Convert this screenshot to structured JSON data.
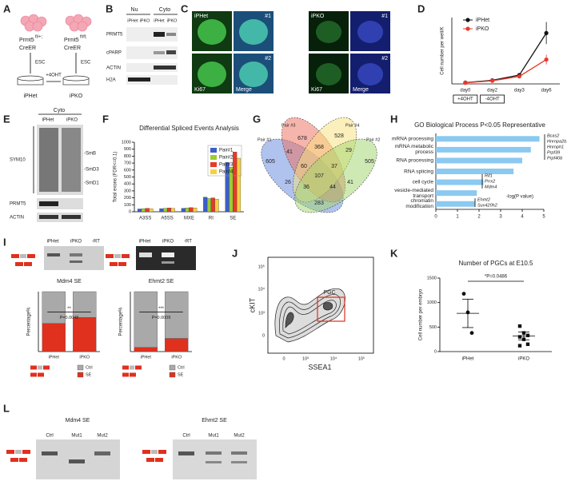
{
  "figure": {
    "panel_letters": [
      "A",
      "B",
      "C",
      "D",
      "E",
      "F",
      "G",
      "H",
      "I",
      "J",
      "K",
      "L"
    ],
    "a": {
      "gene": "Prmt5",
      "alleles": [
        "fl/+;",
        "fl/fl;"
      ],
      "creer": "CreER",
      "esc": "ESC",
      "treatment": "+4OHT",
      "lines": [
        "iPHet",
        "iPKO"
      ]
    },
    "b": {
      "groups": [
        "Nu",
        "Cyto"
      ],
      "lanes": [
        "iPHet",
        "iPKO",
        "iPHet",
        "iPKO"
      ],
      "rows": [
        "PRMT5",
        "cPARP",
        "ACTIN",
        "H2A"
      ]
    },
    "c": {
      "lines": [
        "iPHet",
        "iPKO"
      ],
      "fields": [
        "#1",
        "#2"
      ],
      "channels": [
        "Ki67",
        "Merge"
      ]
    },
    "e": {
      "header": "Cyto",
      "lanes": [
        "iPHet",
        "iPKO"
      ],
      "labels": [
        "SYM10",
        "-SmB",
        "-SmD3",
        "-SmD1",
        "PRMT5",
        "ACTIN"
      ]
    },
    "g": {
      "sets": [
        "Pair #1",
        "Pair #3",
        "Pair #4",
        "Pair #2"
      ],
      "counts": [
        "605",
        "678",
        "528",
        "505",
        "41",
        "368",
        "29",
        "60",
        "37",
        "107",
        "26",
        "41",
        "36",
        "44",
        "283"
      ]
    },
    "i": {
      "lanes": [
        "iPHet",
        "iPKO",
        "-RT"
      ]
    },
    "j": {
      "xlabel": "SSEA1",
      "ylabel": "cKIT",
      "gate": "PGC",
      "yticks": [
        "10⁵",
        "10⁴",
        "10³",
        "0"
      ],
      "xticks": [
        "0",
        "10³",
        "10⁴",
        "10⁵"
      ]
    },
    "l": {
      "titles": [
        "Mdm4 SE",
        "Ehmt2 SE"
      ],
      "lanes": [
        "Ctrl",
        "Mut1",
        "Mut2"
      ]
    }
  },
  "chart_data": [
    {
      "type": "line",
      "ylabel": "Cell number per well/K",
      "categories": [
        "day0",
        "day2",
        "day3",
        "day6"
      ],
      "ylim": [
        0,
        1500
      ],
      "boxes": [
        "+4OHT",
        "-4OHT"
      ],
      "series": [
        {
          "name": "iPHet",
          "color": "#111111",
          "values": [
            30,
            80,
            200,
            1150
          ],
          "errors": [
            5,
            10,
            20,
            250
          ]
        },
        {
          "name": "iPKO",
          "color": "#e8392a",
          "values": [
            25,
            70,
            170,
            550
          ],
          "errors": [
            5,
            10,
            20,
            110
          ]
        }
      ]
    },
    {
      "type": "bar",
      "title": "Differential Spliced Events Analysis",
      "ylabel": "Total exons (FDR<=0.1)",
      "categories": [
        "A3SS",
        "A5SS",
        "MXE",
        "RI",
        "SE"
      ],
      "ylim": [
        0,
        1000
      ],
      "yticks": [
        0,
        100,
        200,
        300,
        400,
        500,
        600,
        700,
        800,
        900,
        1000
      ],
      "series": [
        {
          "name": "Pair#1",
          "color": "#3a5fcd",
          "values": [
            40,
            45,
            50,
            210,
            710
          ]
        },
        {
          "name": "Pair#2",
          "color": "#9acd32",
          "values": [
            45,
            50,
            55,
            190,
            640
          ]
        },
        {
          "name": "Pair#3",
          "color": "#e8392a",
          "values": [
            50,
            55,
            60,
            200,
            860
          ]
        },
        {
          "name": "Pair#4",
          "color": "#f5d142",
          "values": [
            45,
            50,
            55,
            180,
            770
          ]
        }
      ]
    },
    {
      "type": "hbar",
      "title": "GO Biological Process P<0.05 Representative",
      "xlabel": "-log(P value)",
      "color": "#8cc9f0",
      "categories": [
        "mRNA processing",
        "mRNA metabolic process",
        "RNA processing",
        "RNA splicing",
        "cell cycle",
        "vesicle-mediated transport",
        "chromatin modification"
      ],
      "values": [
        4.8,
        4.4,
        4.0,
        3.6,
        2.2,
        1.9,
        1.8
      ],
      "xlim": [
        0,
        5
      ],
      "xticks": [
        0,
        1,
        2,
        3,
        4,
        5
      ],
      "annotations": [
        [
          "Bcas2",
          "Hnrnpa2b1",
          "Hnrnph1",
          "Prpf39",
          "Prpf40b"
        ],
        [
          "Rif1",
          "Prrx2",
          "Mdm4"
        ],
        [
          "Ehmt2",
          "Suv420h2"
        ]
      ]
    },
    {
      "type": "dot",
      "title": "Number of PGCs at E10.5",
      "ylabel": "Cell number per embryo",
      "annotation": "*P=0.0486",
      "categories": [
        "iPHet",
        "iPKO"
      ],
      "ylim": [
        0,
        1500
      ],
      "yticks": [
        0,
        500,
        1000,
        1500
      ],
      "points": [
        [
          1180,
          800,
          380
        ],
        [
          520,
          380,
          330,
          300,
          250,
          150,
          120
        ]
      ],
      "means": [
        780,
        320
      ],
      "errors": [
        290,
        80
      ]
    },
    {
      "type": "stacked",
      "title": "Mdm4 SE",
      "ylabel": "Percentage%",
      "categories": [
        "iPHet",
        "iPKO"
      ],
      "ylim": [
        0,
        100
      ],
      "annotations": [
        "**",
        "P=0.0048"
      ],
      "series": [
        {
          "name": "SE",
          "color": "#e0301e",
          "values": [
            47,
            57
          ]
        },
        {
          "name": "Ctrl",
          "color": "#a9a9a9",
          "values": [
            53,
            43
          ]
        }
      ]
    },
    {
      "type": "stacked",
      "title": "Ehmt2 SE",
      "ylabel": "Percentage%",
      "categories": [
        "iPHet",
        "iPKO"
      ],
      "ylim": [
        0,
        100
      ],
      "annotations": [
        "***",
        "P=0.0009"
      ],
      "series": [
        {
          "name": "SE",
          "color": "#e0301e",
          "values": [
            7,
            22
          ]
        },
        {
          "name": "Ctrl",
          "color": "#a9a9a9",
          "values": [
            93,
            78
          ]
        }
      ]
    }
  ]
}
